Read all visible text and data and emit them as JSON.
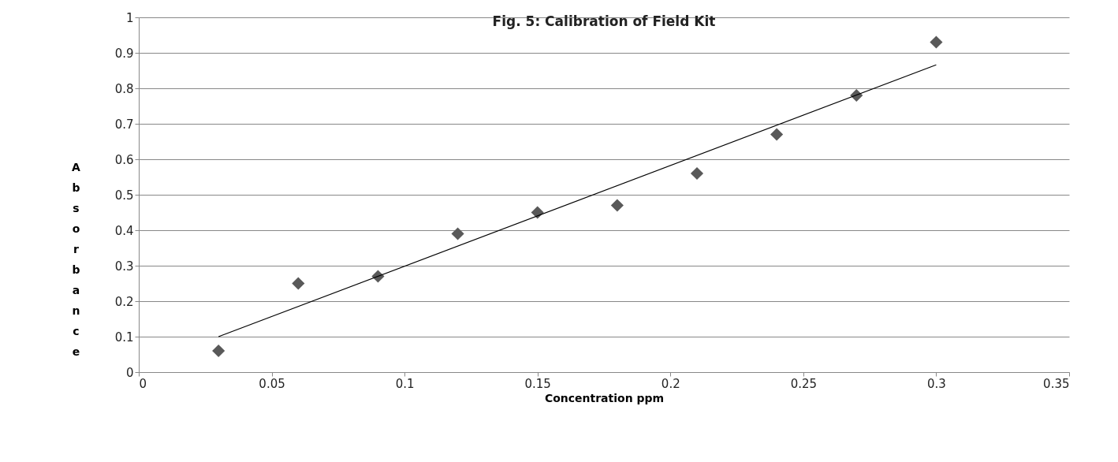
{
  "chart_data": {
    "type": "scatter",
    "title": "Fig. 5: Calibration  of Field Kit",
    "xlabel": "Concentration ppm",
    "ylabel": "Absorbance",
    "xlim": [
      0,
      0.35
    ],
    "xticks": [
      0,
      0.05,
      0.1,
      0.15,
      0.2,
      0.25,
      0.3,
      0.35
    ],
    "ylim": [
      0,
      1
    ],
    "yticks": [
      0,
      0.1,
      0.2,
      0.3,
      0.4,
      0.5,
      0.6,
      0.7,
      0.8,
      0.9,
      1
    ],
    "grid": "y",
    "series": [
      {
        "type": "scatter",
        "color": "#595959",
        "marker": "diamond",
        "x": [
          0.03,
          0.06,
          0.09,
          0.12,
          0.15,
          0.18,
          0.21,
          0.24,
          0.27,
          0.3
        ],
        "values": [
          0.06,
          0.25,
          0.27,
          0.39,
          0.45,
          0.47,
          0.56,
          0.67,
          0.78,
          0.93
        ]
      },
      {
        "type": "line",
        "color": "#000000",
        "marker": "none",
        "x": [
          0.03,
          0.3
        ],
        "values": [
          0.1,
          0.866
        ]
      }
    ]
  }
}
